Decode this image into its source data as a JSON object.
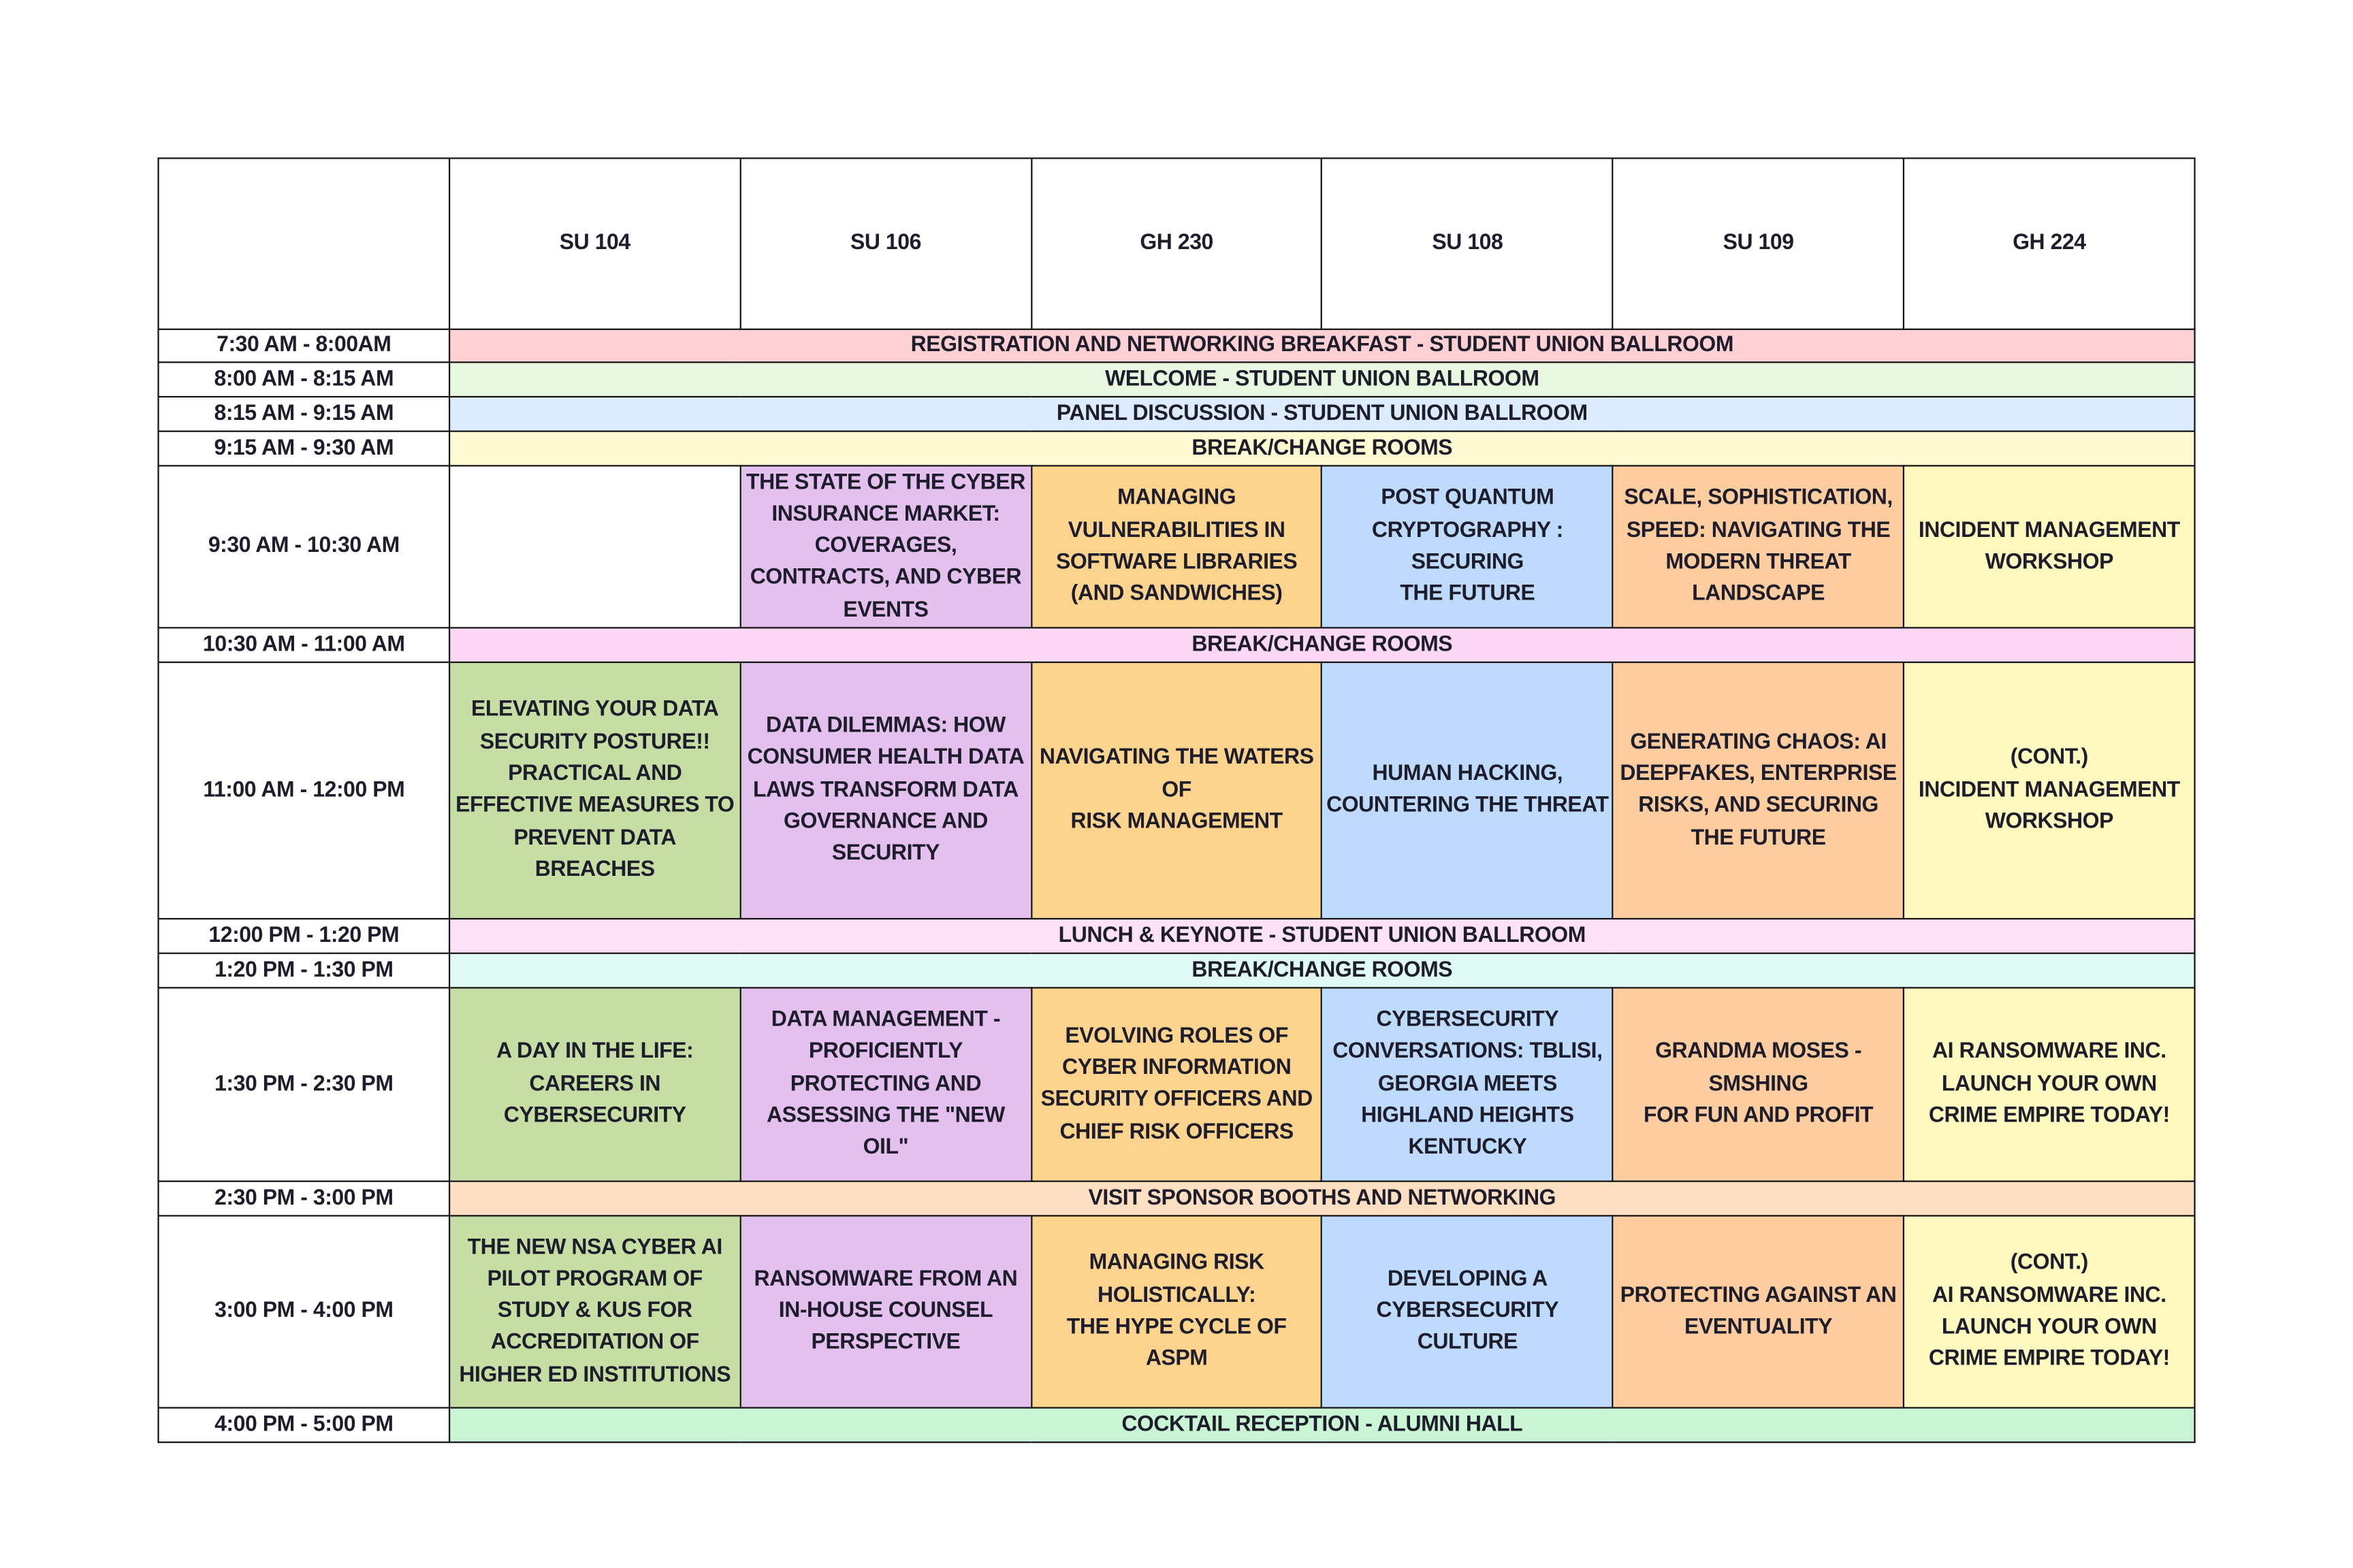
{
  "rooms": [
    "SU 104",
    "SU 106",
    "GH 230",
    "SU 108",
    "SU 109",
    "GH 224"
  ],
  "colors": {
    "green": "#c6dea4",
    "purple": "#e4c0ee",
    "orange": "#fdd48e",
    "blue": "#bedbfd",
    "peach": "#fdcc9f",
    "yellow": "#fef9bf"
  },
  "rows": [
    {
      "time": "7:30 AM - 8:00AM",
      "span": "REGISTRATION AND NETWORKING BREAKFAST - STUDENT UNION BALLROOM",
      "color": "#ffd1d5"
    },
    {
      "time": "8:00 AM - 8:15 AM",
      "span": "WELCOME - STUDENT UNION BALLROOM",
      "color": "#e8f8e0"
    },
    {
      "time": "8:15 AM - 9:15 AM",
      "span": "PANEL DISCUSSION - STUDENT UNION BALLROOM",
      "color": "#dcecfe"
    },
    {
      "time": "9:15 AM - 9:30 AM",
      "span": "BREAK/CHANGE ROOMS",
      "color": "#fffad2"
    },
    {
      "time": "9:30 AM - 10:30 AM",
      "sessions": [
        "",
        "THE STATE OF THE CYBER INSURANCE MARKET: COVERAGES, CONTRACTS, AND CYBER EVENTS",
        "MANAGING VULNERABILITIES IN SOFTWARE LIBRARIES (AND SANDWICHES)",
        "POST QUANTUM CRYPTOGRAPHY : SECURING\nTHE FUTURE",
        "SCALE, SOPHISTICATION, SPEED: NAVIGATING THE MODERN THREAT LANDSCAPE",
        "INCIDENT MANAGEMENT WORKSHOP"
      ]
    },
    {
      "time": "10:30 AM - 11:00 AM",
      "span": "BREAK/CHANGE ROOMS",
      "color": "#fcd8f6"
    },
    {
      "time": "11:00 AM - 12:00 PM",
      "sessions": [
        "ELEVATING YOUR DATA SECURITY POSTURE!! PRACTICAL AND EFFECTIVE MEASURES TO PREVENT DATA BREACHES",
        "DATA DILEMMAS: HOW CONSUMER HEALTH DATA LAWS TRANSFORM DATA GOVERNANCE AND SECURITY",
        "NAVIGATING THE WATERS OF\nRISK MANAGEMENT",
        "HUMAN HACKING, COUNTERING THE THREAT",
        "GENERATING CHAOS: AI DEEPFAKES, ENTERPRISE RISKS, AND SECURING THE FUTURE",
        "(CONT.)\nINCIDENT MANAGEMENT WORKSHOP"
      ]
    },
    {
      "time": "12:00 PM - 1:20 PM",
      "span": "LUNCH & KEYNOTE - STUDENT UNION BALLROOM",
      "color": "#fde1f6"
    },
    {
      "time": "1:20 PM - 1:30 PM",
      "span": "BREAK/CHANGE ROOMS",
      "color": "#e0fbf6"
    },
    {
      "time": "1:30 PM - 2:30 PM",
      "sessions": [
        "A DAY IN THE LIFE: CAREERS IN CYBERSECURITY",
        "DATA MANAGEMENT - PROFICIENTLY PROTECTING AND ASSESSING THE \"NEW OIL\"",
        "EVOLVING ROLES OF CYBER INFORMATION SECURITY OFFICERS AND CHIEF RISK OFFICERS",
        "CYBERSECURITY CONVERSATIONS: TBLISI, GEORGIA MEETS HIGHLAND HEIGHTS KENTUCKY",
        "GRANDMA MOSES - SMSHING\nFOR FUN AND PROFIT",
        "AI RANSOMWARE INC. LAUNCH YOUR OWN CRIME EMPIRE TODAY!"
      ]
    },
    {
      "time": "2:30 PM - 3:00 PM",
      "span": "VISIT SPONSOR BOOTHS AND NETWORKING",
      "color": "#ffdfc2"
    },
    {
      "time": "3:00 PM - 4:00 PM",
      "sessions": [
        "THE NEW NSA CYBER AI PILOT PROGRAM OF STUDY & KUS FOR ACCREDITATION OF HIGHER ED INSTITUTIONS",
        "RANSOMWARE FROM AN IN-HOUSE COUNSEL PERSPECTIVE",
        "MANAGING RISK HOLISTICALLY:\nTHE HYPE CYCLE OF ASPM",
        "DEVELOPING A CYBERSECURITY CULTURE",
        "PROTECTING AGAINST AN EVENTUALITY",
        "(CONT.)\nAI RANSOMWARE INC. LAUNCH YOUR OWN CRIME EMPIRE TODAY!"
      ]
    },
    {
      "time": "4:00 PM - 5:00 PM",
      "span": "COCKTAIL RECEPTION - ALUMNI HALL",
      "color": "#c9f5d5"
    }
  ]
}
